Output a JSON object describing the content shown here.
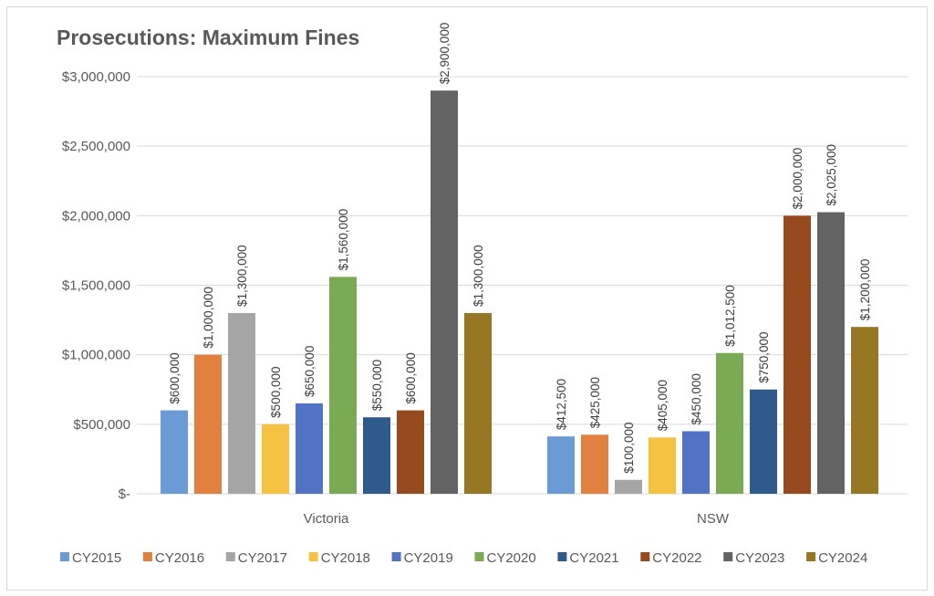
{
  "chart_data": {
    "type": "bar",
    "title": "Prosecutions: Maximum Fines",
    "categories": [
      "Victoria",
      "NSW"
    ],
    "ylim": [
      0,
      3000000
    ],
    "yticks": [
      0,
      500000,
      1000000,
      1500000,
      2000000,
      2500000,
      3000000
    ],
    "ytick_labels": [
      "$-",
      "$500,000",
      "$1,000,000",
      "$1,500,000",
      "$2,000,000",
      "$2,500,000",
      "$3,000,000"
    ],
    "grid": true,
    "legend_position": "bottom",
    "series": [
      {
        "name": "CY2015",
        "color": "#6a9bd4",
        "values": [
          600000,
          412500
        ],
        "labels": [
          "$600,000",
          "$412,500"
        ]
      },
      {
        "name": "CY2016",
        "color": "#e2803f",
        "values": [
          1000000,
          425000
        ],
        "labels": [
          "$1,000,000",
          "$425,000"
        ]
      },
      {
        "name": "CY2017",
        "color": "#a5a5a5",
        "values": [
          1300000,
          100000
        ],
        "labels": [
          "$1,300,000",
          "$100,000"
        ]
      },
      {
        "name": "CY2018",
        "color": "#f6c242",
        "values": [
          500000,
          405000
        ],
        "labels": [
          "$500,000",
          "$405,000"
        ]
      },
      {
        "name": "CY2019",
        "color": "#5272c4",
        "values": [
          650000,
          450000
        ],
        "labels": [
          "$650,000",
          "$450,000"
        ]
      },
      {
        "name": "CY2020",
        "color": "#7aab54",
        "values": [
          1560000,
          1012500
        ],
        "labels": [
          "$1,560,000",
          "$1,012,500"
        ]
      },
      {
        "name": "CY2021",
        "color": "#2e5a8c",
        "values": [
          550000,
          750000
        ],
        "labels": [
          "$550,000",
          "$750,000"
        ]
      },
      {
        "name": "CY2022",
        "color": "#964a1e",
        "values": [
          600000,
          2000000
        ],
        "labels": [
          "$600,000",
          "$2,000,000"
        ]
      },
      {
        "name": "CY2023",
        "color": "#636363",
        "values": [
          2900000,
          2025000
        ],
        "labels": [
          "$2,900,000",
          "$2,025,000"
        ]
      },
      {
        "name": "CY2024",
        "color": "#977624",
        "values": [
          1300000,
          1200000
        ],
        "labels": [
          "$1,300,000",
          "$1,200,000"
        ]
      }
    ]
  }
}
